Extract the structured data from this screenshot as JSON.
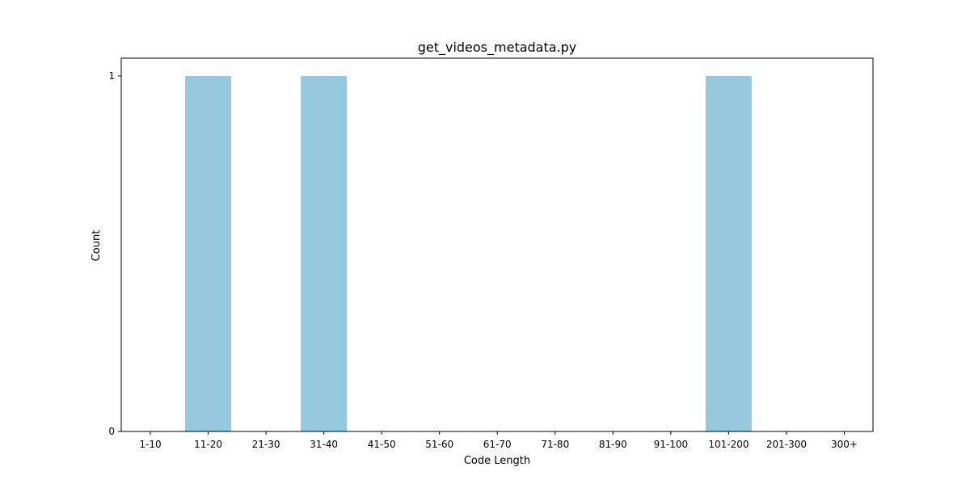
{
  "chart_data": {
    "type": "bar",
    "title": "get_videos_metadata.py",
    "xlabel": "Code Length",
    "ylabel": "Count",
    "categories": [
      "1-10",
      "11-20",
      "21-30",
      "31-40",
      "41-50",
      "51-60",
      "61-70",
      "71-80",
      "81-90",
      "91-100",
      "101-200",
      "201-300",
      "300+"
    ],
    "values": [
      0,
      1,
      0,
      1,
      0,
      0,
      0,
      0,
      0,
      0,
      1,
      0,
      0
    ],
    "yticks": [
      0,
      1
    ],
    "ylim": [
      0,
      1.05
    ],
    "grid": false,
    "legend": "none",
    "bar_color": "#96c9de"
  }
}
